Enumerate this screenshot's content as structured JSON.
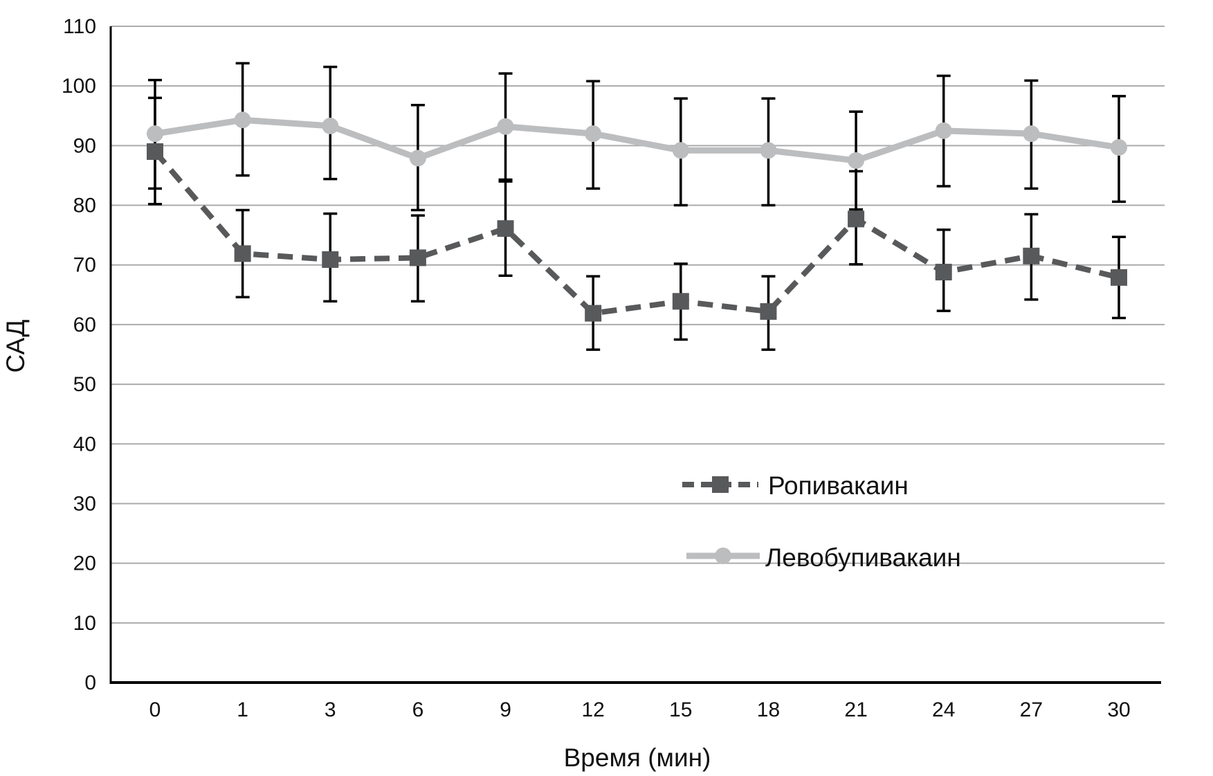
{
  "chart_data": {
    "type": "line",
    "title": "",
    "xlabel": "Время (мин)",
    "ylabel": "САД",
    "categories": [
      "0",
      "1",
      "3",
      "6",
      "9",
      "12",
      "15",
      "18",
      "21",
      "24",
      "27",
      "30"
    ],
    "ylim": [
      0,
      110
    ],
    "yticks": [
      "0",
      "10",
      "20",
      "30",
      "40",
      "50",
      "60",
      "70",
      "80",
      "90",
      "100",
      "110"
    ],
    "grid": true,
    "legend_position": "lower-right",
    "series": [
      {
        "name": "Ропивакаин",
        "style": "dashed",
        "marker": "square",
        "color": "#58595b",
        "values": [
          89.0,
          71.9,
          70.9,
          71.2,
          76.1,
          61.9,
          63.9,
          62.2,
          77.7,
          68.8,
          71.5,
          67.9
        ],
        "error_upper": [
          98.0,
          79.2,
          78.6,
          78.3,
          84.0,
          68.1,
          70.2,
          68.1,
          85.7,
          75.9,
          78.5,
          74.7
        ],
        "error_lower": [
          82.8,
          64.6,
          63.9,
          63.9,
          68.2,
          55.8,
          57.5,
          55.8,
          70.1,
          62.3,
          64.2,
          61.1
        ]
      },
      {
        "name": "Левобупивакаин",
        "style": "solid",
        "marker": "circle",
        "color": "#bcbdbf",
        "values": [
          92.0,
          94.3,
          93.3,
          87.9,
          93.2,
          92.0,
          89.2,
          89.2,
          87.5,
          92.5,
          92.0,
          89.7
        ],
        "error_upper": [
          101.0,
          103.8,
          103.2,
          96.8,
          102.1,
          100.8,
          97.9,
          97.9,
          95.7,
          101.7,
          100.9,
          98.3
        ],
        "error_lower": [
          80.2,
          85.0,
          84.4,
          79.2,
          84.3,
          82.8,
          80.0,
          80.0,
          79.3,
          83.2,
          82.8,
          80.6
        ]
      }
    ]
  },
  "colors": {
    "gridline": "#ababab",
    "axis": "#000000",
    "error_bar": "#000000"
  }
}
